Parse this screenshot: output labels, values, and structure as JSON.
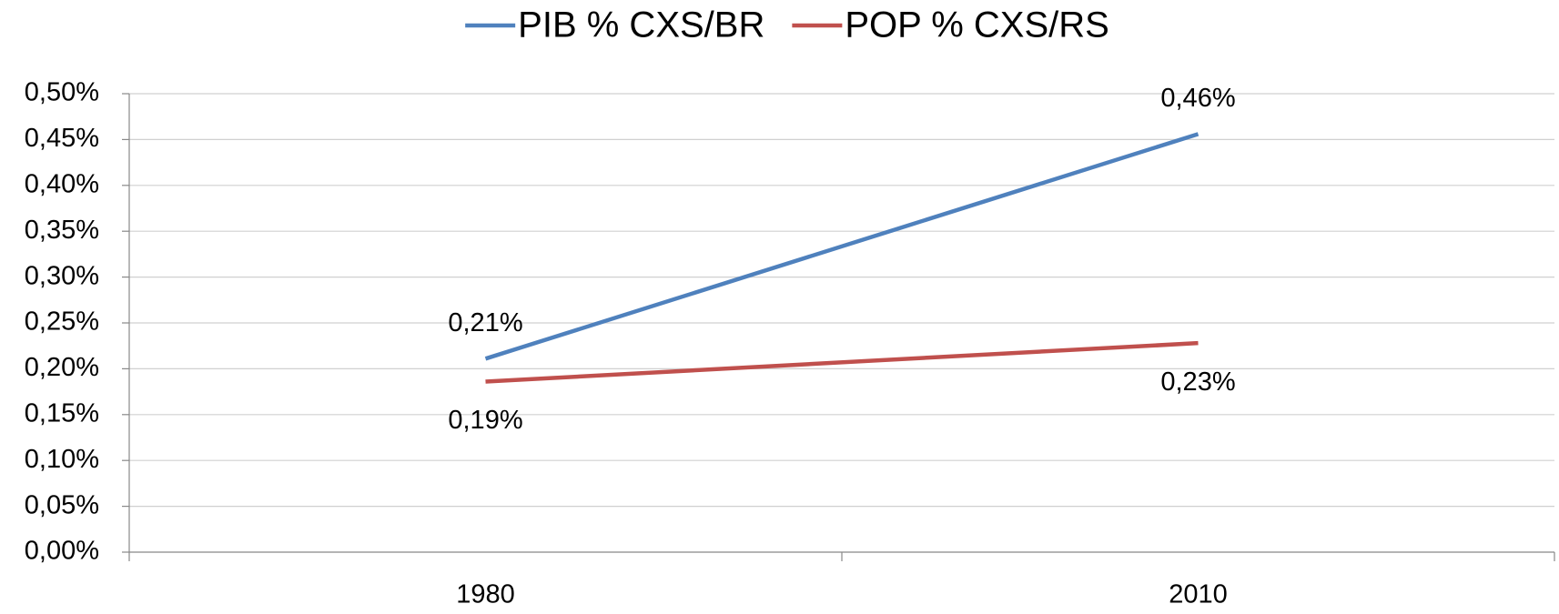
{
  "chart_data": {
    "type": "line",
    "categories": [
      "1980",
      "2010"
    ],
    "series": [
      {
        "name": "PIB % CXS/BR",
        "color": "#4f81bd",
        "values": [
          0.211,
          0.456
        ],
        "value_labels": [
          "0,21%",
          "0,46%"
        ]
      },
      {
        "name": "POP % CXS/RS",
        "color": "#c0504d",
        "values": [
          0.186,
          0.228
        ],
        "value_labels": [
          "0,19%",
          "0,23%"
        ]
      }
    ],
    "ylim": [
      0,
      0.5
    ],
    "yticks": [
      {
        "value": 0,
        "label": "0,00%"
      },
      {
        "value": 0.05,
        "label": "0,05%"
      },
      {
        "value": 0.1,
        "label": "0,10%"
      },
      {
        "value": 0.15,
        "label": "0,15%"
      },
      {
        "value": 0.2,
        "label": "0,20%"
      },
      {
        "value": 0.25,
        "label": "0,25%"
      },
      {
        "value": 0.3,
        "label": "0,30%"
      },
      {
        "value": 0.35,
        "label": "0,35%"
      },
      {
        "value": 0.4,
        "label": "0,40%"
      },
      {
        "value": 0.45,
        "label": "0,45%"
      },
      {
        "value": 0.5,
        "label": "0,50%"
      }
    ],
    "grid": true,
    "legend": "top"
  }
}
